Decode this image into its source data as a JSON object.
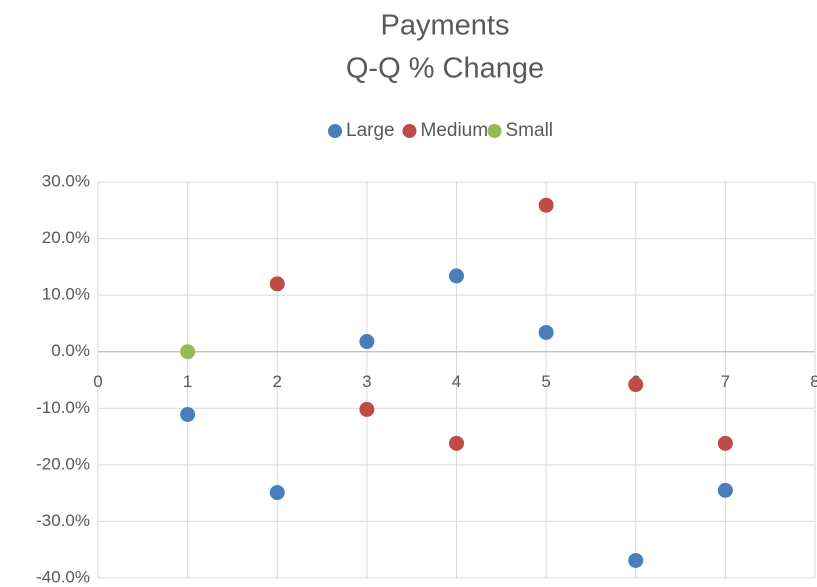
{
  "chart_data": {
    "type": "scatter",
    "title": "Payments",
    "subtitle": "Q-Q % Change",
    "series": [
      {
        "name": "Large",
        "color": "#4a7ebb",
        "x": [
          1,
          2,
          3,
          4,
          5,
          6,
          7
        ],
        "values": [
          -11.1,
          -24.9,
          1.8,
          13.4,
          3.4,
          -36.9,
          -24.5
        ]
      },
      {
        "name": "Medium",
        "color": "#be4b48",
        "x": [
          2,
          3,
          4,
          5,
          6,
          7
        ],
        "values": [
          12.0,
          -10.2,
          -16.2,
          25.9,
          -5.8,
          -16.2
        ]
      },
      {
        "name": "Small",
        "color": "#98b954",
        "x": [
          1
        ],
        "values": [
          0
        ]
      }
    ],
    "xlim": [
      0,
      8
    ],
    "xticks": [
      0,
      1,
      2,
      3,
      4,
      5,
      6,
      7,
      8
    ],
    "ylim": [
      -40,
      30
    ],
    "yticks": [
      {
        "value": -40,
        "label": "-40.0%"
      },
      {
        "value": -30,
        "label": "-30.0%"
      },
      {
        "value": -20,
        "label": "-20.0%"
      },
      {
        "value": -10,
        "label": "-10.0%"
      },
      {
        "value": 0,
        "label": "0.0%"
      },
      {
        "value": 10,
        "label": "10.0%"
      },
      {
        "value": 20,
        "label": "20.0%"
      },
      {
        "value": 30,
        "label": "30.0%"
      }
    ],
    "grid": true,
    "legend": "top"
  }
}
